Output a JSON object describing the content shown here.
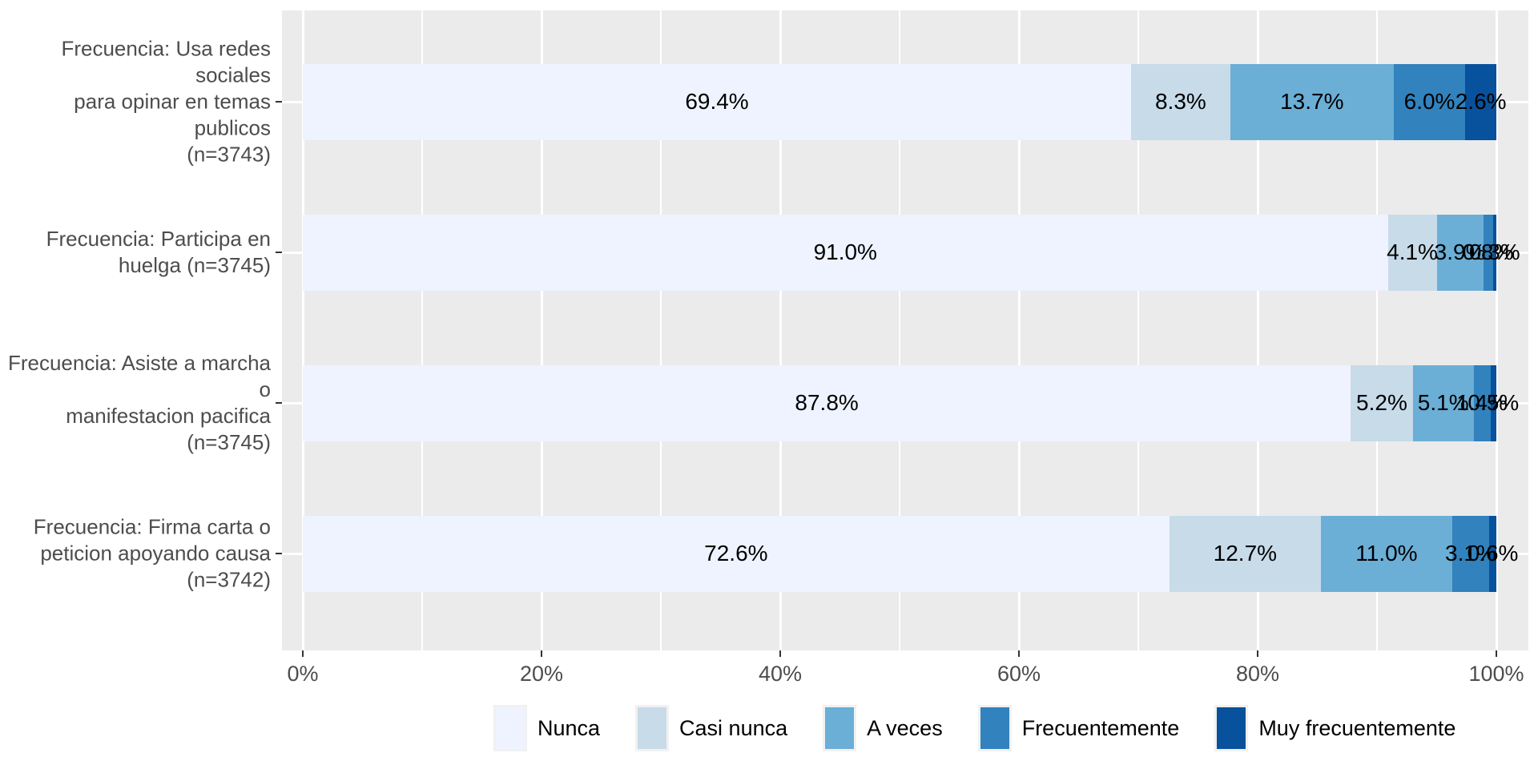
{
  "chart_data": {
    "type": "bar",
    "variant": "horizontal_stacked_100pct",
    "title": "",
    "xlabel": "",
    "ylabel": "",
    "categories": [
      "Frecuencia: Usa redes sociales\npara opinar en temas publicos\n(n=3743)",
      "Frecuencia: Participa en\nhuelga (n=3745)",
      "Frecuencia: Asiste a marcha o\nmanifestacion pacifica\n(n=3745)",
      "Frecuencia: Firma carta o\npeticion apoyando causa\n(n=3742)"
    ],
    "series": [
      {
        "name": "Nunca",
        "color": "#eff3ff",
        "values": [
          69.4,
          91.0,
          87.8,
          72.6
        ]
      },
      {
        "name": "Casi nunca",
        "color": "#c7dbe9",
        "values": [
          8.3,
          4.1,
          5.2,
          12.7
        ]
      },
      {
        "name": "A veces",
        "color": "#6baed6",
        "values": [
          13.7,
          3.9,
          5.1,
          11.0
        ]
      },
      {
        "name": "Frecuentemente",
        "color": "#3182bd",
        "values": [
          6.0,
          0.8,
          1.4,
          3.1
        ]
      },
      {
        "name": "Muy frecuentemente",
        "color": "#08519c",
        "values": [
          2.6,
          0.3,
          0.5,
          0.6
        ]
      }
    ],
    "value_label_suffix": "%",
    "x_ticks": [
      "0%",
      "20%",
      "40%",
      "60%",
      "80%",
      "100%"
    ],
    "xlim": [
      0,
      100
    ],
    "grid": "white major and minor vertical lines on gray panel, white horizontal line at each category",
    "legend_position": "bottom",
    "colors": {
      "panel_bg": "#ebebeb",
      "gridline": "#ffffff",
      "axis_text": "#4d4d4d",
      "tick_mark": "#333333",
      "value_label_text": "#000000",
      "legend_text": "#000000"
    }
  }
}
